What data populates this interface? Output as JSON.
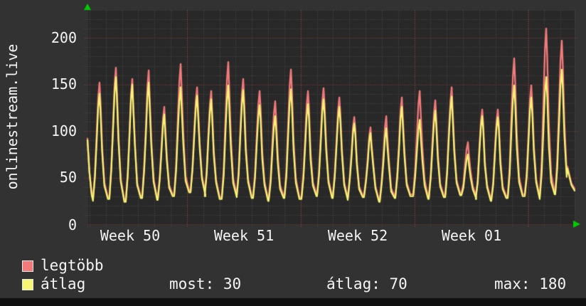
{
  "title_vertical": "onlinestream.live",
  "chart_data": {
    "type": "line",
    "title": "onlinestream.live",
    "x_axis": {
      "unit": "days",
      "days_total": 30,
      "tick_labels": [
        "Week 50",
        "Week 51",
        "Week 52",
        "Week 01"
      ],
      "tick_label_day_centers": [
        2.63,
        9.63,
        16.63,
        23.63
      ],
      "week_boundary_days": [
        6.13,
        13.13,
        20.13,
        27.14
      ],
      "day_gridline_offset": 0.13
    },
    "y_axis": {
      "range": [
        0,
        230
      ],
      "tick_values": [
        0,
        50,
        100,
        150,
        200
      ],
      "ticks_display_top_to_bottom": [
        "200",
        "150",
        "100",
        "50",
        "0"
      ],
      "minor_step": 10,
      "major_step": 50,
      "grid": true
    },
    "peak_days": [
      0.74,
      1.75,
      2.76,
      3.77,
      4.73,
      5.74,
      6.75,
      7.62,
      8.67,
      9.59,
      10.6,
      11.56,
      12.53,
      13.58,
      14.54,
      15.51,
      16.43,
      17.43,
      18.4,
      19.36,
      20.46,
      21.42,
      22.43,
      23.43,
      24.31,
      25.27,
      26.28,
      27.33,
      28.25,
      29.21
    ],
    "series": [
      {
        "name": "legtöbb",
        "color": "#f27a7a",
        "daily_peaks": [
          150,
          166,
          154,
          163,
          124,
          170,
          145,
          141,
          172,
          154,
          141,
          130,
          164,
          141,
          144,
          134,
          113,
          102,
          114,
          134,
          141,
          131,
          145,
          86,
          121,
          121,
          176,
          147,
          208,
          195
        ]
      },
      {
        "name": "átlag",
        "color": "#f6f672",
        "daily_peaks": [
          140,
          158,
          150,
          152,
          118,
          147,
          138,
          134,
          149,
          144,
          128,
          116,
          145,
          129,
          134,
          126,
          108,
          98,
          103,
          126,
          112,
          122,
          137,
          75,
          116,
          115,
          149,
          136,
          158,
          166
        ]
      }
    ],
    "nightly_troughs": [
      25,
      27,
      24,
      28,
      26,
      30,
      34,
      30,
      27,
      29,
      28,
      25,
      28,
      27,
      30,
      28,
      26,
      29,
      24,
      28,
      30,
      27,
      29,
      31,
      27,
      25,
      28,
      30,
      27,
      32,
      36
    ],
    "edge_values": {
      "start": 90,
      "end": 36
    },
    "legend_position": "bottom-left",
    "colors": {
      "background_outer": "#323232",
      "background_plot": "#282828",
      "grid_minor": "#4d4d4d",
      "grid_major_red": "#944040",
      "grid_week_red": "#a04545",
      "axis_zero_red": "#7c2a2a",
      "arrow_green": "#00cc00",
      "text": "#f5f5f5",
      "bottom_bar": "#0f0f0f"
    }
  },
  "legend": {
    "items": [
      {
        "label": "legtöbb",
        "color": "#f27a7a"
      },
      {
        "label": "átlag",
        "color": "#f6f672"
      }
    ]
  },
  "stats": [
    {
      "label": "most:",
      "value": "30"
    },
    {
      "label": "átlag:",
      "value": "70"
    },
    {
      "label": "max:",
      "value": "180"
    }
  ]
}
